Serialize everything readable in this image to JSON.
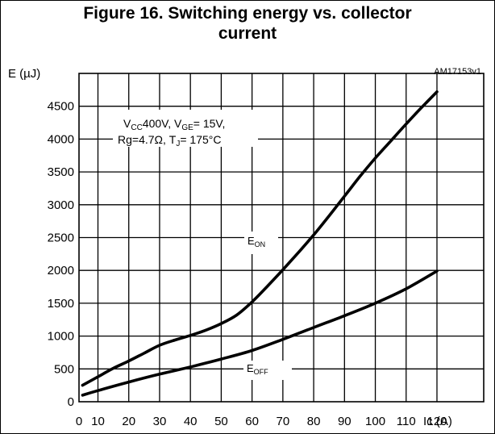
{
  "title_line1": "Figure 16. Switching energy vs. collector",
  "title_line2": "current",
  "ref_code": "AM17153v1",
  "conditions": {
    "vcc_prefix": "V",
    "vcc_sub": "CC",
    "vcc_value": "400V, V",
    "vge_sub": "GE",
    "vge_value": "= 15V,",
    "rg_text": "Rg=4.7Ω, T",
    "tj_sub": "J",
    "tj_value": "= 175°C"
  },
  "series_labels": {
    "eon_main": "E",
    "eon_sub": "ON",
    "eoff_main": "E",
    "eoff_sub": "OFF"
  },
  "chart_data": {
    "type": "line",
    "title": "Figure 16. Switching energy vs. collector current",
    "xlabel": "Ic (A)",
    "ylabel": "E (µJ)",
    "xlim": [
      0,
      120
    ],
    "ylim": [
      0,
      5000
    ],
    "x_ticks": [
      0,
      10,
      20,
      30,
      40,
      50,
      60,
      70,
      80,
      90,
      100,
      110,
      120
    ],
    "y_ticks": [
      0,
      500,
      1000,
      1500,
      2000,
      2500,
      3000,
      3500,
      4000,
      4500
    ],
    "grid": true,
    "series": [
      {
        "name": "EON",
        "x": [
          5,
          10,
          15,
          20,
          25,
          30,
          35,
          40,
          45,
          50,
          55,
          60,
          65,
          70,
          75,
          80,
          85,
          90,
          95,
          100,
          105,
          110,
          115,
          120
        ],
        "y": [
          250,
          380,
          510,
          620,
          740,
          860,
          940,
          1010,
          1090,
          1190,
          1320,
          1520,
          1760,
          2010,
          2270,
          2540,
          2830,
          3130,
          3430,
          3710,
          3970,
          4230,
          4480,
          4720
        ]
      },
      {
        "name": "EOFF",
        "x": [
          5,
          10,
          20,
          30,
          40,
          50,
          60,
          70,
          80,
          90,
          100,
          110,
          120
        ],
        "y": [
          100,
          170,
          300,
          420,
          530,
          650,
          780,
          950,
          1130,
          1310,
          1500,
          1720,
          1990
        ]
      }
    ]
  }
}
